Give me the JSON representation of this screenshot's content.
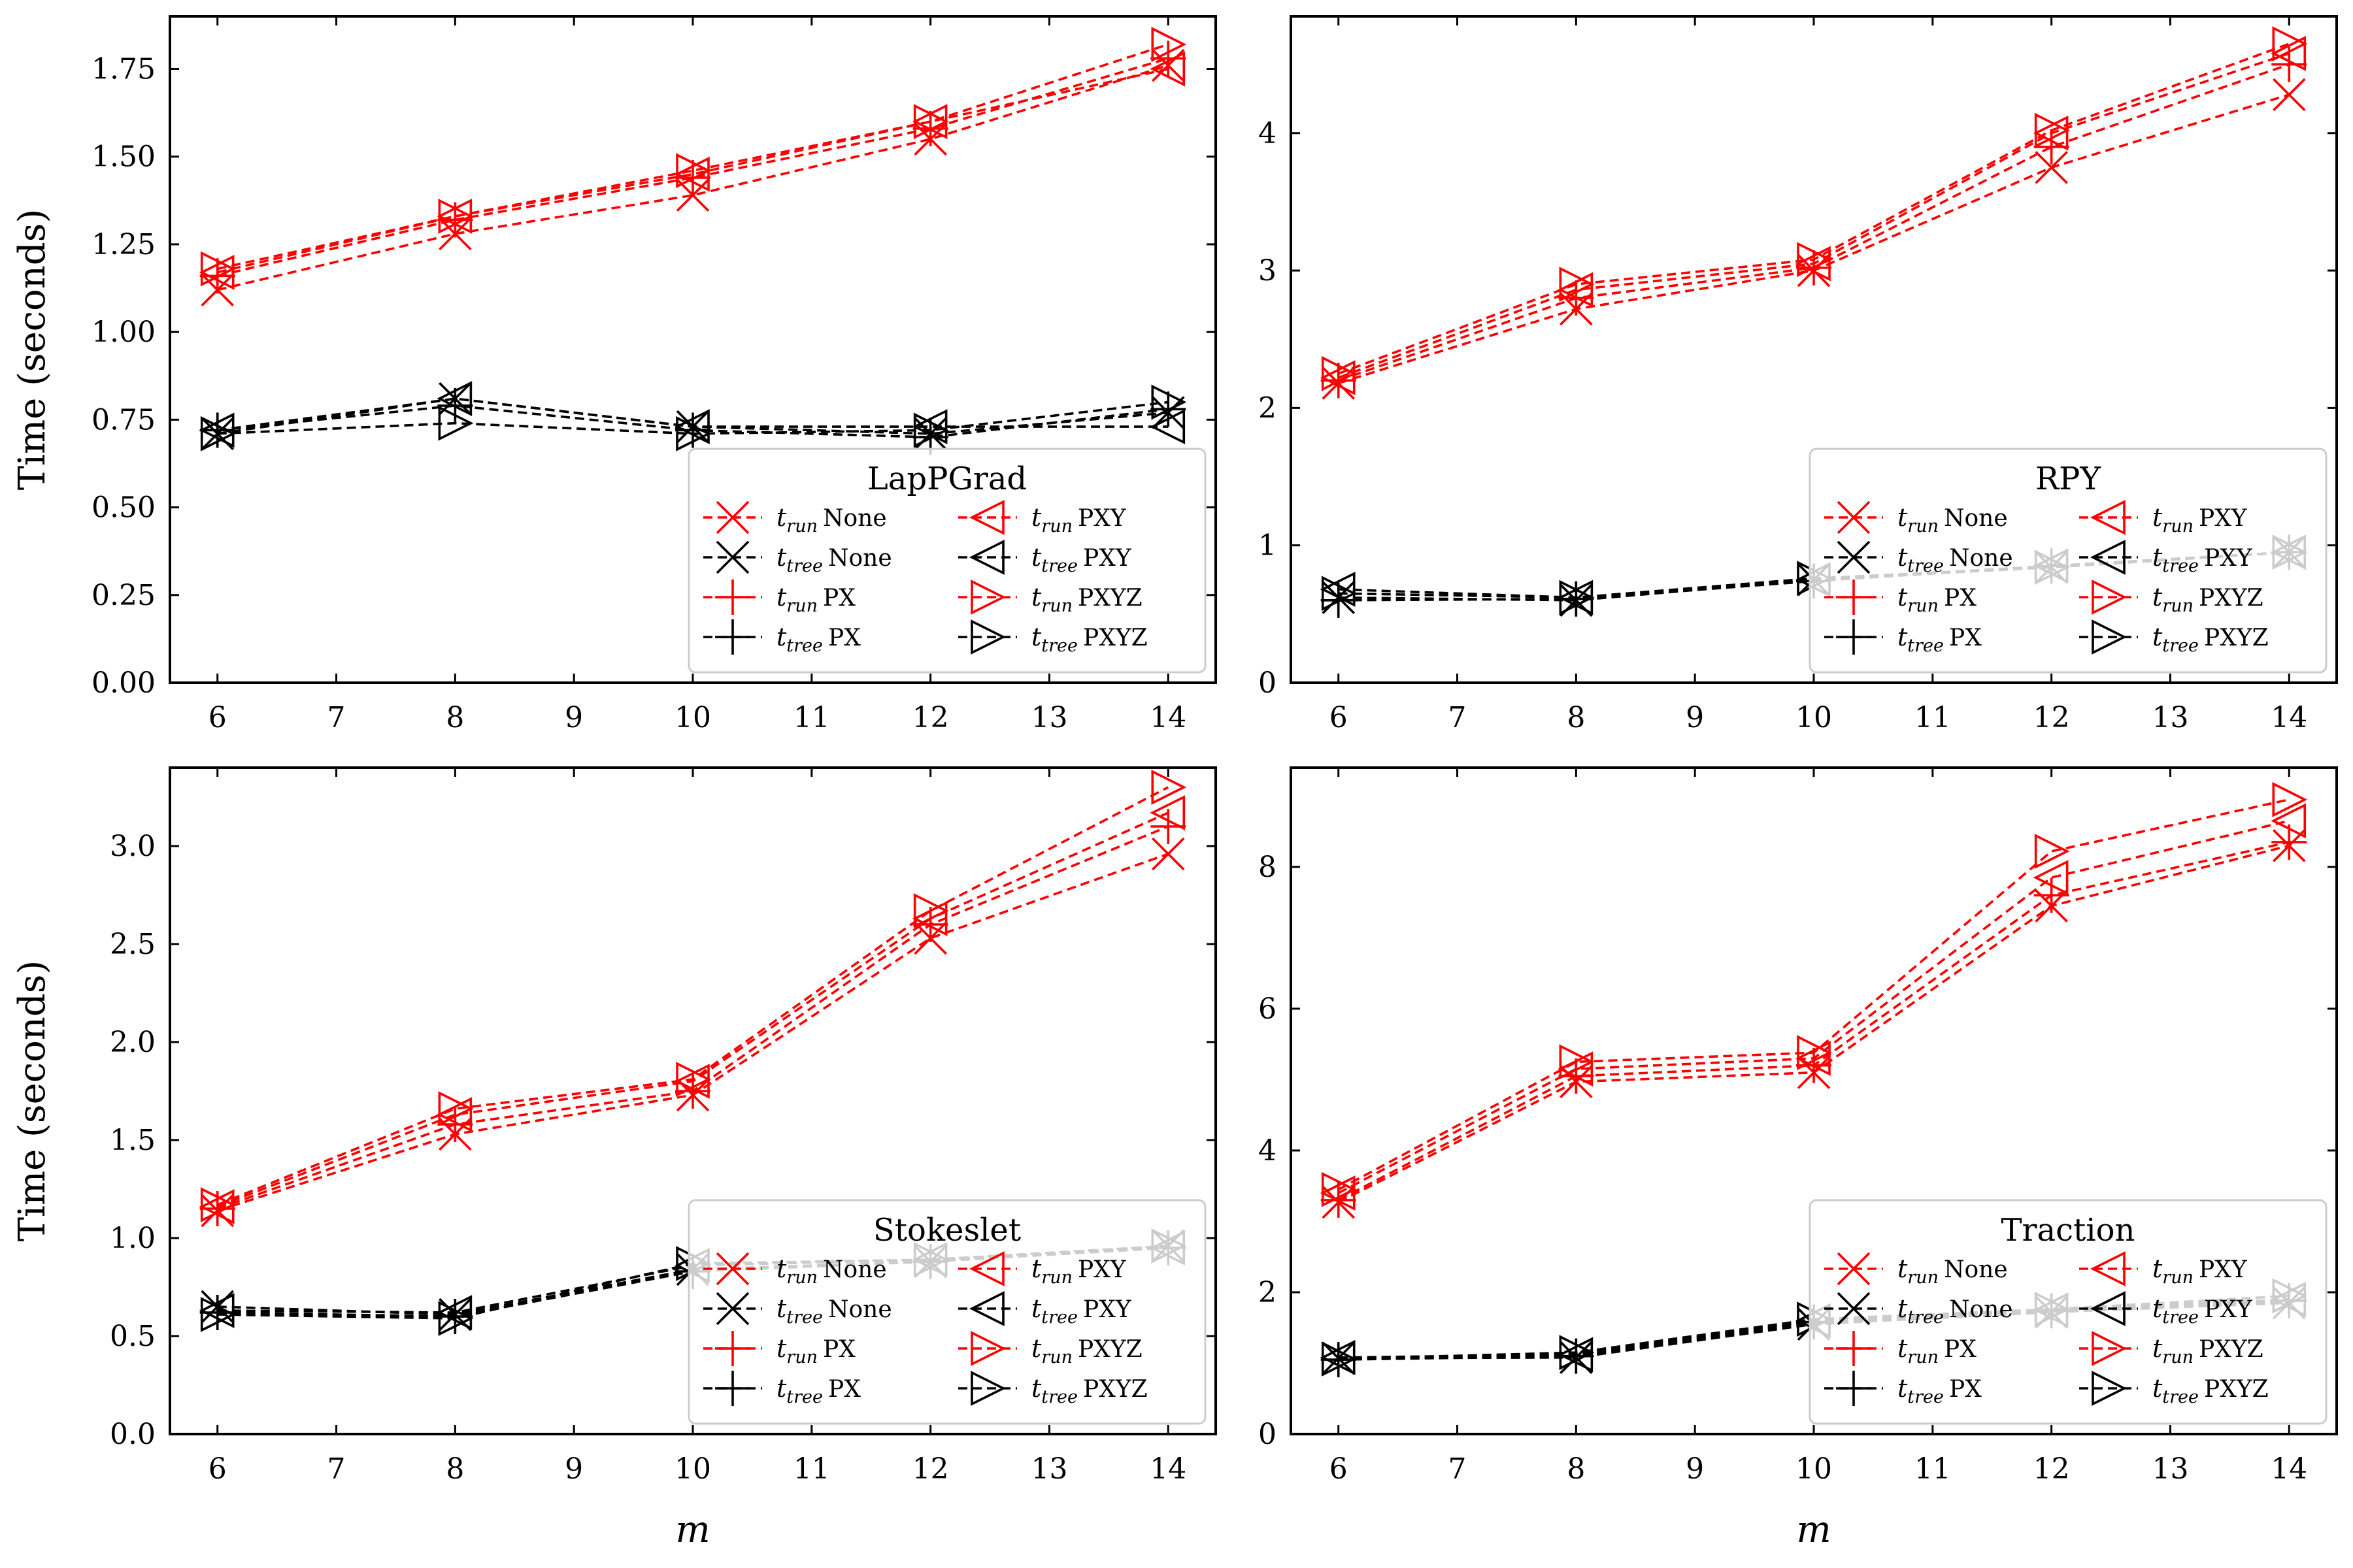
{
  "chart_data": [
    {
      "type": "line",
      "title": "LapPGrad",
      "xlabel": "",
      "ylabel": "Time (seconds)",
      "x": [
        6,
        8,
        10,
        12,
        14
      ],
      "xlim": [
        5.6,
        14.4
      ],
      "ylim": [
        0,
        1.9
      ],
      "xticks": [
        "6",
        "7",
        "8",
        "9",
        "10",
        "11",
        "12",
        "13",
        "14"
      ],
      "yticks": [
        "0.00",
        "0.25",
        "0.50",
        "0.75",
        "1.00",
        "1.25",
        "1.50",
        "1.75"
      ],
      "legend_position": "lower-right",
      "series": [
        {
          "name": "t_run None",
          "color": "#ff0000",
          "marker": "x",
          "values": [
            1.12,
            1.28,
            1.39,
            1.55,
            1.76
          ]
        },
        {
          "name": "t_tree None",
          "color": "#000000",
          "marker": "x",
          "values": [
            0.71,
            0.81,
            0.73,
            0.71,
            0.77
          ]
        },
        {
          "name": "t_run PX",
          "color": "#ff0000",
          "marker": "+",
          "values": [
            1.16,
            1.32,
            1.44,
            1.58,
            1.78
          ]
        },
        {
          "name": "t_tree PX",
          "color": "#000000",
          "marker": "+",
          "values": [
            0.72,
            0.79,
            0.72,
            0.7,
            0.78
          ]
        },
        {
          "name": "t_run PXY",
          "color": "#ff0000",
          "marker": "<",
          "values": [
            1.17,
            1.33,
            1.45,
            1.6,
            1.75
          ]
        },
        {
          "name": "t_tree PXY",
          "color": "#000000",
          "marker": "<",
          "values": [
            0.72,
            0.81,
            0.73,
            0.73,
            0.73
          ]
        },
        {
          "name": "t_run PXYZ",
          "color": "#ff0000",
          "marker": ">",
          "values": [
            1.18,
            1.33,
            1.46,
            1.6,
            1.82
          ]
        },
        {
          "name": "t_tree PXYZ",
          "color": "#000000",
          "marker": ">",
          "values": [
            0.71,
            0.74,
            0.71,
            0.72,
            0.8
          ]
        }
      ]
    },
    {
      "type": "line",
      "title": "RPY",
      "xlabel": "",
      "ylabel": "",
      "x": [
        6,
        8,
        10,
        12,
        14
      ],
      "xlim": [
        5.6,
        14.4
      ],
      "ylim": [
        0,
        4.85
      ],
      "xticks": [
        "6",
        "7",
        "8",
        "9",
        "10",
        "11",
        "12",
        "13",
        "14"
      ],
      "yticks": [
        "0",
        "1",
        "2",
        "3",
        "4"
      ],
      "legend_position": "lower-right",
      "series": [
        {
          "name": "t_run None",
          "color": "#ff0000",
          "marker": "x",
          "values": [
            2.18,
            2.72,
            3.0,
            3.75,
            4.28
          ]
        },
        {
          "name": "t_tree None",
          "color": "#000000",
          "marker": "x",
          "values": [
            0.62,
            0.6,
            0.75,
            0.84,
            0.95
          ]
        },
        {
          "name": "t_run PX",
          "color": "#ff0000",
          "marker": "+",
          "values": [
            2.2,
            2.8,
            3.02,
            3.9,
            4.5
          ]
        },
        {
          "name": "t_tree PX",
          "color": "#000000",
          "marker": "+",
          "values": [
            0.6,
            0.61,
            0.74,
            0.85,
            0.95
          ]
        },
        {
          "name": "t_run PXY",
          "color": "#ff0000",
          "marker": "<",
          "values": [
            2.22,
            2.86,
            3.05,
            4.0,
            4.58
          ]
        },
        {
          "name": "t_tree PXY",
          "color": "#000000",
          "marker": "<",
          "values": [
            0.68,
            0.62,
            0.75,
            0.85,
            0.95
          ]
        },
        {
          "name": "t_run PXYZ",
          "color": "#ff0000",
          "marker": ">",
          "values": [
            2.25,
            2.9,
            3.08,
            4.02,
            4.65
          ]
        },
        {
          "name": "t_tree PXYZ",
          "color": "#000000",
          "marker": ">",
          "values": [
            0.65,
            0.62,
            0.76,
            0.84,
            0.95
          ]
        }
      ]
    },
    {
      "type": "line",
      "title": "Stokeslet",
      "xlabel": "m",
      "ylabel": "Time (seconds)",
      "x": [
        6,
        8,
        10,
        12,
        14
      ],
      "xlim": [
        5.6,
        14.4
      ],
      "ylim": [
        0,
        3.4
      ],
      "xticks": [
        "6",
        "7",
        "8",
        "9",
        "10",
        "11",
        "12",
        "13",
        "14"
      ],
      "yticks": [
        "0.0",
        "0.5",
        "1.0",
        "1.5",
        "2.0",
        "2.5",
        "3.0"
      ],
      "legend_position": "lower-right",
      "series": [
        {
          "name": "t_run None",
          "color": "#ff0000",
          "marker": "x",
          "values": [
            1.14,
            1.53,
            1.73,
            2.53,
            2.96
          ]
        },
        {
          "name": "t_tree None",
          "color": "#000000",
          "marker": "x",
          "values": [
            0.65,
            0.61,
            0.84,
            0.88,
            0.96
          ]
        },
        {
          "name": "t_run PX",
          "color": "#ff0000",
          "marker": "+",
          "values": [
            1.15,
            1.58,
            1.75,
            2.6,
            3.1
          ]
        },
        {
          "name": "t_tree PX",
          "color": "#000000",
          "marker": "+",
          "values": [
            0.62,
            0.6,
            0.83,
            0.88,
            0.95
          ]
        },
        {
          "name": "t_run PXY",
          "color": "#ff0000",
          "marker": "<",
          "values": [
            1.16,
            1.63,
            1.8,
            2.63,
            3.17
          ]
        },
        {
          "name": "t_tree PXY",
          "color": "#000000",
          "marker": "<",
          "values": [
            0.63,
            0.62,
            0.86,
            0.89,
            0.95
          ]
        },
        {
          "name": "t_run PXYZ",
          "color": "#ff0000",
          "marker": ">",
          "values": [
            1.17,
            1.66,
            1.81,
            2.67,
            3.3
          ]
        },
        {
          "name": "t_tree PXYZ",
          "color": "#000000",
          "marker": ">",
          "values": [
            0.61,
            0.59,
            0.87,
            0.89,
            0.96
          ]
        }
      ]
    },
    {
      "type": "line",
      "title": "Traction",
      "xlabel": "m",
      "ylabel": "",
      "x": [
        6,
        8,
        10,
        12,
        14
      ],
      "xlim": [
        5.6,
        14.4
      ],
      "ylim": [
        0,
        9.4
      ],
      "xticks": [
        "6",
        "7",
        "8",
        "9",
        "10",
        "11",
        "12",
        "13",
        "14"
      ],
      "yticks": [
        "0",
        "2",
        "4",
        "6",
        "8"
      ],
      "legend_position": "lower-right",
      "series": [
        {
          "name": "t_run None",
          "color": "#ff0000",
          "marker": "x",
          "values": [
            3.27,
            4.97,
            5.1,
            7.45,
            8.3
          ]
        },
        {
          "name": "t_tree None",
          "color": "#000000",
          "marker": "x",
          "values": [
            1.07,
            1.08,
            1.55,
            1.72,
            1.85
          ]
        },
        {
          "name": "t_run PX",
          "color": "#ff0000",
          "marker": "+",
          "values": [
            3.3,
            5.05,
            5.2,
            7.6,
            8.35
          ]
        },
        {
          "name": "t_tree PX",
          "color": "#000000",
          "marker": "+",
          "values": [
            1.05,
            1.1,
            1.58,
            1.74,
            1.88
          ]
        },
        {
          "name": "t_run PXY",
          "color": "#ff0000",
          "marker": "<",
          "values": [
            3.4,
            5.15,
            5.3,
            7.85,
            8.65
          ]
        },
        {
          "name": "t_tree PXY",
          "color": "#000000",
          "marker": "<",
          "values": [
            1.08,
            1.12,
            1.6,
            1.75,
            1.9
          ]
        },
        {
          "name": "t_run PXYZ",
          "color": "#ff0000",
          "marker": ">",
          "values": [
            3.45,
            5.25,
            5.38,
            8.22,
            8.95
          ]
        },
        {
          "name": "t_tree PXYZ",
          "color": "#000000",
          "marker": ">",
          "values": [
            1.06,
            1.15,
            1.62,
            1.76,
            1.95
          ]
        }
      ]
    }
  ],
  "legend": {
    "entries": [
      {
        "sub": "run",
        "label": "None",
        "color": "#ff0000",
        "marker": "x"
      },
      {
        "sub": "tree",
        "label": "None",
        "color": "#000000",
        "marker": "x"
      },
      {
        "sub": "run",
        "label": "PX",
        "color": "#ff0000",
        "marker": "+"
      },
      {
        "sub": "tree",
        "label": "PX",
        "color": "#000000",
        "marker": "+"
      },
      {
        "sub": "run",
        "label": "PXY",
        "color": "#ff0000",
        "marker": "<"
      },
      {
        "sub": "tree",
        "label": "PXY",
        "color": "#000000",
        "marker": "<"
      },
      {
        "sub": "run",
        "label": "PXYZ",
        "color": "#ff0000",
        "marker": ">"
      },
      {
        "sub": "tree",
        "label": "PXYZ",
        "color": "#000000",
        "marker": ">"
      }
    ]
  }
}
